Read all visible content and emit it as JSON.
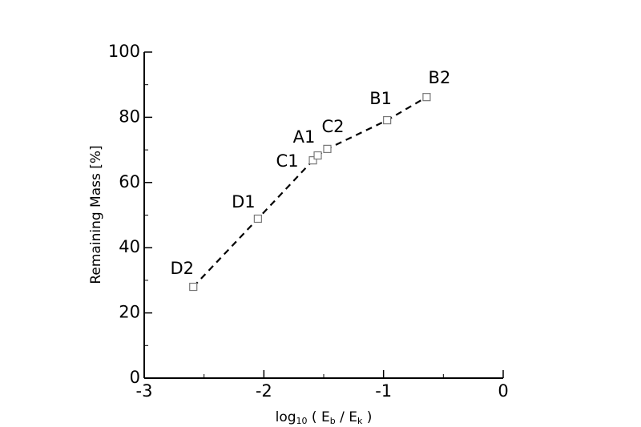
{
  "chart_data": {
    "type": "line",
    "xlabel": [
      {
        "text": "log"
      },
      {
        "text": "10",
        "sub": true
      },
      {
        "text": "( E"
      },
      {
        "text": "b",
        "sub": true
      },
      {
        "text": "/ E"
      },
      {
        "text": "k",
        "sub": true
      },
      {
        "text": ")"
      }
    ],
    "ylabel": "Remaining Mass [%]",
    "x": [
      -2.59,
      -2.05,
      -1.59,
      -1.55,
      -1.47,
      -0.97,
      -0.64
    ],
    "series": [
      {
        "color": "#000000",
        "marker_color": "#777777",
        "dash": true,
        "values": [
          28.0,
          48.9,
          66.8,
          68.3,
          70.3,
          79.1,
          86.2
        ],
        "point_labels": [
          "D2",
          "D1",
          "C1",
          "A1",
          "C2",
          "B1",
          "B2"
        ]
      }
    ],
    "xlim": [
      -3,
      0
    ],
    "xticks": [
      -3,
      -2,
      -1,
      0
    ],
    "xminorticks": [
      -2.5,
      -1.5,
      -0.5
    ],
    "ylim": [
      0,
      100
    ],
    "yticks": [
      0,
      20,
      40,
      60,
      80,
      100
    ],
    "yminorticks": [
      10,
      30,
      50,
      70,
      90
    ]
  }
}
